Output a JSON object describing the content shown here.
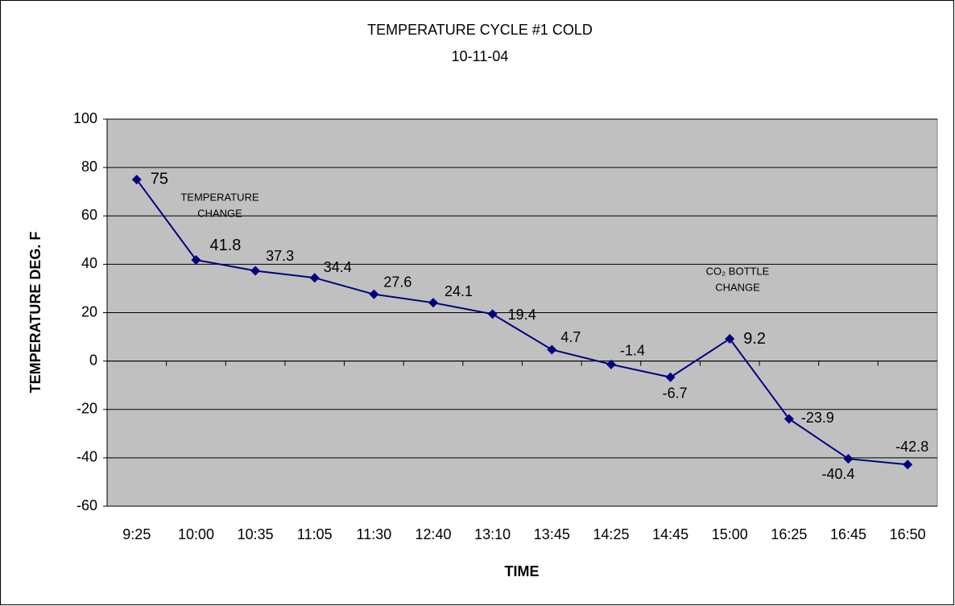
{
  "chart_data": {
    "type": "line",
    "title": "TEMPERATURE CYCLE #1 COLD",
    "subtitle": "10-11-04",
    "x_label": "TIME",
    "y_label": "TEMPERATURE DEG. F",
    "categories": [
      "9:25",
      "10:00",
      "10:35",
      "11:05",
      "11:30",
      "12:40",
      "13:10",
      "13:45",
      "14:25",
      "14:45",
      "15:00",
      "16:25",
      "16:45",
      "16:50"
    ],
    "series": [
      {
        "name": "TEMPERATURE",
        "color": "#000080",
        "values": [
          75,
          41.8,
          37.3,
          34.4,
          27.6,
          24.1,
          19.4,
          4.7,
          -1.4,
          -6.7,
          9.2,
          -23.9,
          -40.4,
          -42.8
        ]
      }
    ],
    "value_label_colors": [
      "#ff0000",
      "#ff0000",
      "#000000",
      "#000000",
      "#000000",
      "#000000",
      "#000000",
      "#000000",
      "#000000",
      "#000000",
      "#ff0000",
      "#000000",
      "#000000",
      "#000000"
    ],
    "annotations": [
      [
        "TEMPERATURE",
        "CHANGE"
      ],
      [
        "CO₂ BOTTLE",
        "CHANGE"
      ]
    ],
    "annotation_color": "#ff0000",
    "ylim": [
      -60,
      100
    ],
    "yticks": [
      -60,
      -40,
      -20,
      0,
      20,
      40,
      60,
      80,
      100
    ],
    "grid": true,
    "plot_background": "#c0c0c0"
  }
}
